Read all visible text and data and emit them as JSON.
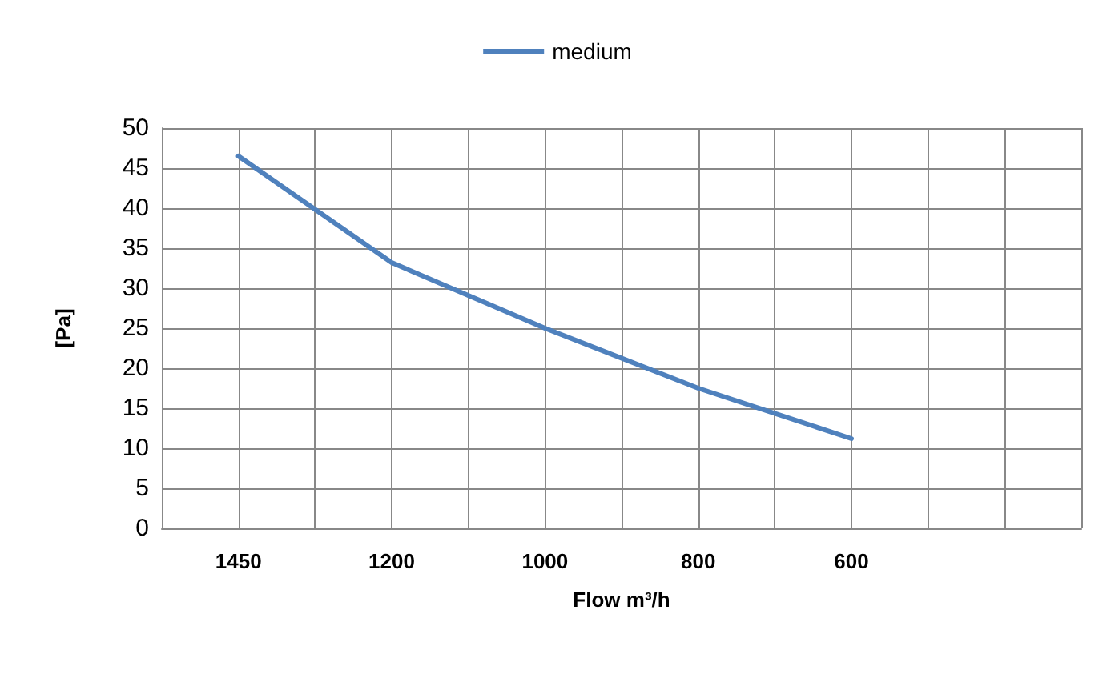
{
  "chart_data": {
    "type": "line",
    "xlabel": "Flow m³/h",
    "ylabel": "[Pa]",
    "categories": [
      null,
      "1450",
      null,
      "1200",
      null,
      "1000",
      null,
      "800",
      null,
      "600",
      null,
      null,
      null
    ],
    "series": [
      {
        "name": "medium",
        "color": "#4f81bd",
        "values": [
          null,
          46.5,
          null,
          33.2,
          null,
          25,
          null,
          17.5,
          null,
          11.2,
          null,
          null,
          null
        ]
      }
    ],
    "ylim": [
      0,
      50
    ],
    "yticks": [
      0,
      5,
      10,
      15,
      20,
      25,
      30,
      35,
      40,
      45,
      50
    ],
    "grid": true,
    "legend": "top",
    "marker": "none",
    "line_style": "solid"
  }
}
